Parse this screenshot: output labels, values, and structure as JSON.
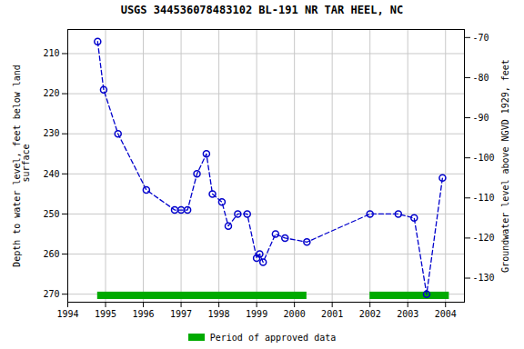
{
  "chart_data": {
    "type": "line",
    "title": "USGS 344536078483102 BL-191 NR TAR HEEL, NC",
    "ylabel": "Depth to water level, feet below land\n surface",
    "y2label": "Groundwater level above NGVD 1929, feet",
    "x": [
      1994.79,
      1994.95,
      1995.33,
      1996.08,
      1996.83,
      1997.0,
      1997.17,
      1997.42,
      1997.67,
      1997.83,
      1998.08,
      1998.25,
      1998.5,
      1998.75,
      1999.0,
      1999.08,
      1999.17,
      1999.5,
      1999.75,
      2000.33,
      2002.0,
      2002.75,
      2003.17,
      2003.5,
      2003.92
    ],
    "series": [
      {
        "color": "#0000cc",
        "marker": "circle",
        "line_style": "dashed",
        "values": [
          207,
          219,
          230,
          244,
          249,
          249,
          249,
          240,
          235,
          245,
          247,
          253,
          250,
          250,
          261,
          260,
          262,
          255,
          256,
          257,
          250,
          250,
          251,
          270,
          241
        ]
      }
    ],
    "xlim": [
      1994.0,
      2004.5
    ],
    "xticks": [
      1994,
      1995,
      1996,
      1997,
      1998,
      1999,
      2000,
      2001,
      2002,
      2003,
      2004
    ],
    "ylim": [
      272,
      204
    ],
    "yticks": [
      210,
      220,
      230,
      240,
      250,
      260,
      270
    ],
    "y2lim": [
      -136,
      -68
    ],
    "y2ticks": [
      -70,
      -80,
      -90,
      -100,
      -110,
      -120,
      -130
    ],
    "grid": true,
    "legend": "bottom",
    "approved_periods": [
      {
        "start": 1994.79,
        "end": 2000.33
      },
      {
        "start": 2002.0,
        "end": 2004.1
      }
    ],
    "approved_label": "Period of approved data",
    "approved_color": "#00aa00"
  }
}
